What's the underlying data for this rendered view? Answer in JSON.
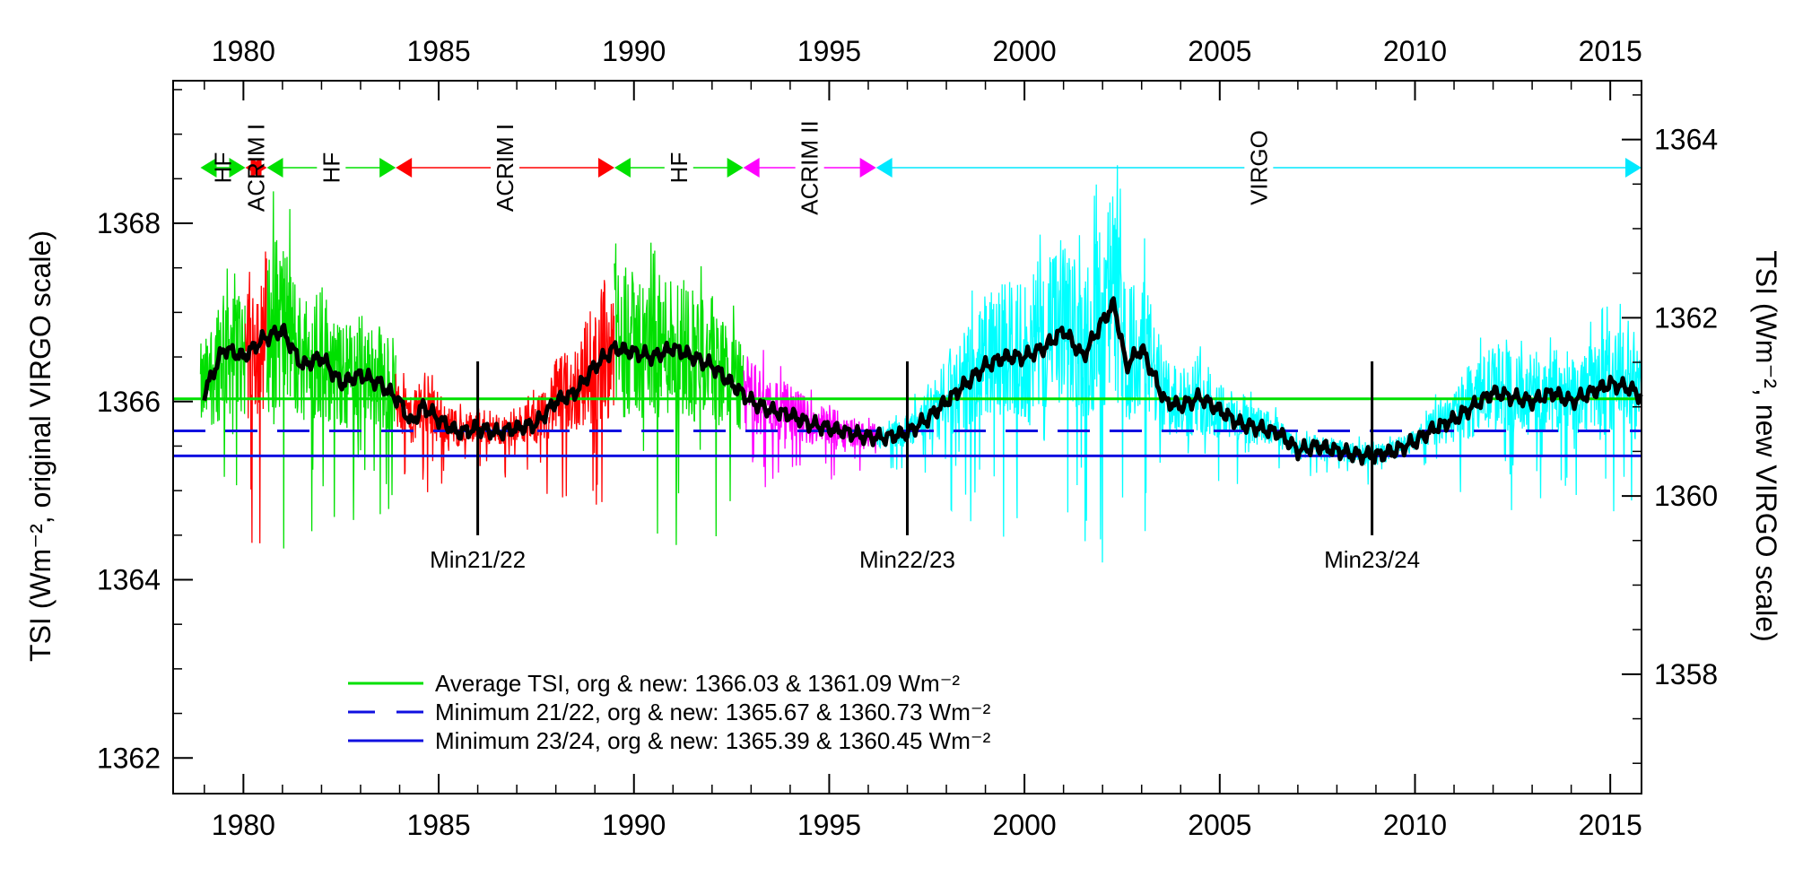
{
  "chart_data": {
    "type": "line",
    "x_ticks": [
      "1980",
      "1985",
      "1990",
      "1995",
      "2000",
      "2005",
      "2010",
      "2015"
    ],
    "x_range": [
      1978.2,
      2015.8
    ],
    "y_left": {
      "label": "TSI (Wm⁻², original VIRGO scale)",
      "range": [
        1361.6,
        1369.6
      ],
      "ticks": [
        "1362",
        "1364",
        "1366",
        "1368"
      ]
    },
    "y_right": {
      "label": "TSI (Wm⁻², new VIRGO scale)",
      "offset": -4.94,
      "ticks": [
        "1358",
        "1360",
        "1362",
        "1364"
      ]
    },
    "instruments": [
      {
        "name": "HF",
        "start": 1978.9,
        "end": 1980.05,
        "color": "#00e000"
      },
      {
        "name": "ACRIM I",
        "start": 1980.05,
        "end": 1980.6,
        "color": "#ff0000"
      },
      {
        "name": "HF",
        "start": 1980.6,
        "end": 1983.9,
        "color": "#00e000"
      },
      {
        "name": "ACRIM I",
        "start": 1983.9,
        "end": 1989.5,
        "color": "#ff0000"
      },
      {
        "name": "HF",
        "start": 1989.5,
        "end": 1992.8,
        "color": "#00e000"
      },
      {
        "name": "ACRIM II",
        "start": 1992.8,
        "end": 1996.2,
        "color": "#ff00ff"
      },
      {
        "name": "VIRGO",
        "start": 1996.2,
        "end": 2015.8,
        "color": "#00ffff"
      }
    ],
    "minima": [
      {
        "label": "Min21/22",
        "year": 1986.0
      },
      {
        "label": "Min22/23",
        "year": 1997.0
      },
      {
        "label": "Min23/24",
        "year": 2008.9
      }
    ],
    "reference_lines": [
      {
        "name": "Average TSI, org & new: 1366.03 & 1361.09 Wm⁻²",
        "value": 1366.03,
        "color": "#00e000",
        "style": "solid"
      },
      {
        "name": "Minimum 21/22, org & new: 1365.67 & 1360.73 Wm⁻²",
        "value": 1365.67,
        "color": "#1010e0",
        "style": "dashed"
      },
      {
        "name": "Minimum 23/24, org & new: 1365.39 & 1360.45 Wm⁻²",
        "value": 1365.39,
        "color": "#1010e0",
        "style": "solid"
      }
    ],
    "smoothed_series": {
      "name": "",
      "color": "#000000",
      "x": [
        1979.0,
        1979.5,
        1980.0,
        1980.5,
        1981.0,
        1981.5,
        1982.0,
        1982.5,
        1983.0,
        1983.5,
        1984.0,
        1984.3,
        1984.6,
        1985.0,
        1985.5,
        1986.0,
        1986.5,
        1987.0,
        1987.5,
        1988.0,
        1988.5,
        1989.0,
        1989.5,
        1990.0,
        1990.5,
        1991.0,
        1991.5,
        1992.0,
        1992.5,
        1993.0,
        1993.5,
        1994.0,
        1994.5,
        1995.0,
        1995.5,
        1996.0,
        1996.5,
        1997.0,
        1997.5,
        1998.0,
        1998.5,
        1999.0,
        1999.5,
        2000.0,
        2000.5,
        2001.0,
        2001.5,
        2002.0,
        2002.3,
        2002.6,
        2003.0,
        2003.3,
        2003.6,
        2004.0,
        2004.5,
        2005.0,
        2005.5,
        2006.0,
        2006.5,
        2007.0,
        2007.5,
        2008.0,
        2008.5,
        2009.0,
        2009.5,
        2010.0,
        2010.5,
        2011.0,
        2011.5,
        2012.0,
        2012.5,
        2013.0,
        2013.5,
        2014.0,
        2014.5,
        2015.0,
        2015.5,
        2015.8
      ],
      "y": [
        1366.1,
        1366.6,
        1366.5,
        1366.7,
        1366.8,
        1366.4,
        1366.5,
        1366.2,
        1366.3,
        1366.2,
        1366.0,
        1365.75,
        1365.95,
        1365.8,
        1365.65,
        1365.7,
        1365.65,
        1365.7,
        1365.75,
        1366.0,
        1366.1,
        1366.4,
        1366.6,
        1366.55,
        1366.5,
        1366.6,
        1366.5,
        1366.4,
        1366.2,
        1366.0,
        1365.9,
        1365.85,
        1365.75,
        1365.7,
        1365.65,
        1365.6,
        1365.6,
        1365.65,
        1365.8,
        1366.0,
        1366.2,
        1366.4,
        1366.5,
        1366.5,
        1366.6,
        1366.8,
        1366.5,
        1366.9,
        1367.1,
        1366.4,
        1366.6,
        1366.3,
        1366.0,
        1365.95,
        1366.05,
        1365.9,
        1365.75,
        1365.7,
        1365.65,
        1365.45,
        1365.5,
        1365.45,
        1365.4,
        1365.39,
        1365.45,
        1365.55,
        1365.7,
        1365.8,
        1365.95,
        1366.1,
        1366.05,
        1366.0,
        1366.1,
        1366.0,
        1366.1,
        1366.2,
        1366.15,
        1366.05
      ]
    }
  }
}
